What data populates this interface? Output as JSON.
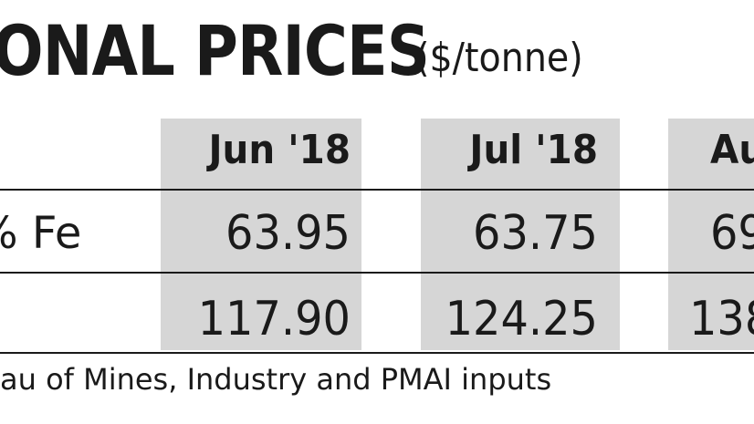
{
  "chart_data": {
    "type": "table",
    "title": "ONAL PRICES",
    "unit": "($/tonne)",
    "columns": [
      "Jun '18",
      "Jul '18",
      "Au"
    ],
    "rows": [
      {
        "label": "% Fe",
        "values": [
          "63.95",
          "63.75",
          "69"
        ]
      },
      {
        "label": "",
        "values": [
          "117.90",
          "124.25",
          "138"
        ]
      }
    ],
    "source": "au of Mines, Industry and PMAI inputs"
  },
  "colors": {
    "shade": "#d6d6d6",
    "text": "#1a1a1a",
    "background": "#ffffff"
  }
}
